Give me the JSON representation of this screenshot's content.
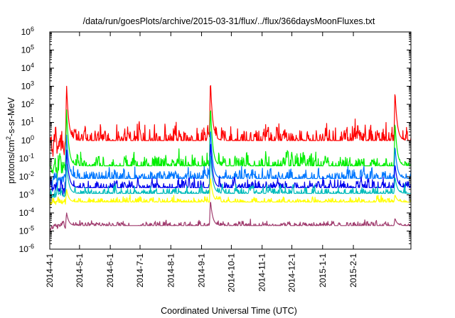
{
  "chart_data": {
    "type": "line",
    "title": "/data/run/goesPlots/archive/2015-03-31/flux/../flux/366daysMoonFluxes.txt",
    "xlabel": "Coordinated Universal Time (UTC)",
    "ylabel": "protons/cm²-s-sr-MeV",
    "ylabel_parts": {
      "pre": "protons/cm",
      "sup": "2",
      "post": "-s-sr-MeV"
    },
    "xlim": [
      "2014-04-01",
      "2015-03-31"
    ],
    "ylim": [
      1e-06,
      1000000.0
    ],
    "yscale": "log",
    "grid": false,
    "legend": "none",
    "x_ticks": [
      "2014-4-1",
      "2014-5-1",
      "2014-6-1",
      "2014-7-1",
      "2014-8-1",
      "2014-9-1",
      "2014-10-1",
      "2014-11-1",
      "2014-12-1",
      "2015-1-1",
      "2015-2-1"
    ],
    "y_ticks": [
      {
        "base": "10",
        "exp": "-6"
      },
      {
        "base": "10",
        "exp": "-5"
      },
      {
        "base": "10",
        "exp": "-4"
      },
      {
        "base": "10",
        "exp": "-3"
      },
      {
        "base": "10",
        "exp": "-2"
      },
      {
        "base": "10",
        "exp": "-1"
      },
      {
        "base": "10",
        "exp": "0"
      },
      {
        "base": "10",
        "exp": "1"
      },
      {
        "base": "10",
        "exp": "2"
      },
      {
        "base": "10",
        "exp": "3"
      },
      {
        "base": "10",
        "exp": "4"
      },
      {
        "base": "10",
        "exp": "5"
      },
      {
        "base": "10",
        "exp": "6"
      }
    ],
    "events": [
      {
        "date": "2014-04-18",
        "peak": 1000
      },
      {
        "date": "2014-09-10",
        "peak": 2000
      },
      {
        "date": "2015-03-15",
        "peak": 500
      }
    ],
    "series": [
      {
        "color": "#ff0000",
        "baseline": 1.0,
        "noise": 0.45,
        "peaks": [
          1000,
          2000,
          500
        ]
      },
      {
        "color": "#00ee00",
        "baseline": 0.04,
        "noise": 0.35,
        "peaks": [
          50,
          80,
          10
        ]
      },
      {
        "color": "#0077ff",
        "baseline": 0.008,
        "noise": 0.3,
        "peaks": [
          2,
          5,
          0.5
        ]
      },
      {
        "color": "#0000ee",
        "baseline": 0.0025,
        "noise": 0.25,
        "peaks": [
          0.3,
          1.0,
          0.05
        ]
      },
      {
        "color": "#00bbbb",
        "baseline": 0.0012,
        "noise": 0.22,
        "peaks": [
          0.05,
          0.2,
          0.01
        ]
      },
      {
        "color": "#ffff00",
        "baseline": 0.0004,
        "noise": 0.15,
        "peaks": [
          0.002,
          0.01,
          0.001
        ]
      },
      {
        "color": "#a03c6e",
        "baseline": 2e-05,
        "noise": 0.12,
        "peaks": [
          0.0001,
          0.0005,
          5e-05
        ]
      }
    ]
  }
}
